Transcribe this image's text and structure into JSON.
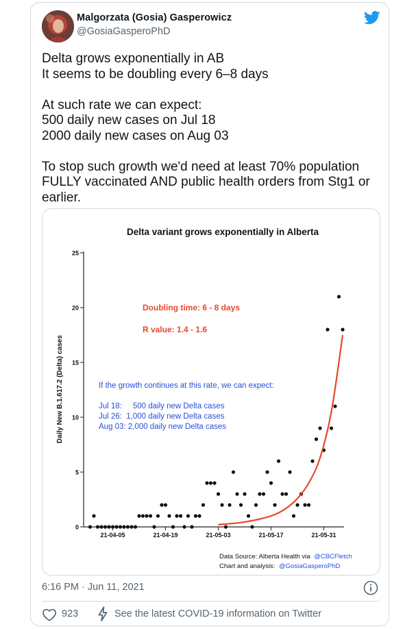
{
  "tweet": {
    "author_name": "Malgorzata (Gosia) Gasperowicz",
    "author_handle": "@GosiaGasperoPhD",
    "paragraphs": [
      "Delta grows exponentially in AB\nIt seems to be doubling every 6–8 days",
      "At such rate we can expect:\n500 daily new cases on Jul 18\n2000 daily new cases on Aug 03",
      "To stop such growth we'd need at least 70% population FULLY vaccinated AND public health orders from Stg1 or earlier."
    ],
    "timestamp": "6:16 PM · Jun 11, 2021",
    "like_count": "923",
    "covid_link": "See the latest COVID-19 information on Twitter"
  },
  "icons": {
    "platform": "twitter-bird-icon",
    "info": "info-icon",
    "like": "heart-icon",
    "covid": "lightning-bolt-icon"
  },
  "colors": {
    "twitter_blue": "#1d9bf0",
    "secondary_text": "#536471",
    "border": "#cfd9de",
    "trend_line": "#e8472b",
    "annotation_red": "#e8472b",
    "annotation_blue": "#2a4fd6"
  },
  "chart_data": {
    "type": "scatter",
    "title": "Delta variant grows exponentially in Alberta",
    "ylabel": "Daily New B.1.617.2 (Delta) cases",
    "xlabel": "",
    "x_range": [
      "2021-03-29",
      "2021-06-05"
    ],
    "ylim": [
      0,
      25
    ],
    "yticks": [
      "0",
      "5",
      "10",
      "15",
      "20",
      "25"
    ],
    "xticks": [
      "21-04-05",
      "21-04-19",
      "21-05-03",
      "21-05-17",
      "21-05-31"
    ],
    "grid": false,
    "annotations": {
      "doubling": "Doubling time: 6 - 8 days",
      "r_value": "R value: 1.4 - 1.6",
      "forecast_intro": "If the growth continues at this rate, we can expect:",
      "forecast_lines": [
        "Jul 18:     500 daily new Delta cases",
        "Jul 26:  1,000 daily new Delta cases",
        "Aug 03: 2,000 daily new Delta cases"
      ],
      "source": "Data Source: Alberta Health via",
      "source_handle": "@CBCFletch",
      "analysis": "Chart and analysis:",
      "analysis_handle": "@GosiaGasperoPhD"
    },
    "points": [
      {
        "x": "2021-03-30",
        "y": 0
      },
      {
        "x": "2021-03-31",
        "y": 1
      },
      {
        "x": "2021-04-01",
        "y": 0
      },
      {
        "x": "2021-04-02",
        "y": 0
      },
      {
        "x": "2021-04-03",
        "y": 0
      },
      {
        "x": "2021-04-04",
        "y": 0
      },
      {
        "x": "2021-04-05",
        "y": 0
      },
      {
        "x": "2021-04-06",
        "y": 0
      },
      {
        "x": "2021-04-07",
        "y": 0
      },
      {
        "x": "2021-04-08",
        "y": 0
      },
      {
        "x": "2021-04-09",
        "y": 0
      },
      {
        "x": "2021-04-10",
        "y": 0
      },
      {
        "x": "2021-04-11",
        "y": 0
      },
      {
        "x": "2021-04-12",
        "y": 1
      },
      {
        "x": "2021-04-13",
        "y": 1
      },
      {
        "x": "2021-04-14",
        "y": 1
      },
      {
        "x": "2021-04-15",
        "y": 1
      },
      {
        "x": "2021-04-16",
        "y": 0
      },
      {
        "x": "2021-04-17",
        "y": 1
      },
      {
        "x": "2021-04-18",
        "y": 2
      },
      {
        "x": "2021-04-19",
        "y": 2
      },
      {
        "x": "2021-04-20",
        "y": 1
      },
      {
        "x": "2021-04-21",
        "y": 0
      },
      {
        "x": "2021-04-22",
        "y": 1
      },
      {
        "x": "2021-04-23",
        "y": 1
      },
      {
        "x": "2021-04-24",
        "y": 0
      },
      {
        "x": "2021-04-25",
        "y": 1
      },
      {
        "x": "2021-04-26",
        "y": 0
      },
      {
        "x": "2021-04-27",
        "y": 1
      },
      {
        "x": "2021-04-28",
        "y": 1
      },
      {
        "x": "2021-04-29",
        "y": 2
      },
      {
        "x": "2021-04-30",
        "y": 4
      },
      {
        "x": "2021-05-01",
        "y": 4
      },
      {
        "x": "2021-05-02",
        "y": 4
      },
      {
        "x": "2021-05-03",
        "y": 3
      },
      {
        "x": "2021-05-04",
        "y": 2
      },
      {
        "x": "2021-05-05",
        "y": 0
      },
      {
        "x": "2021-05-06",
        "y": 2
      },
      {
        "x": "2021-05-07",
        "y": 5
      },
      {
        "x": "2021-05-08",
        "y": 3
      },
      {
        "x": "2021-05-09",
        "y": 2
      },
      {
        "x": "2021-05-10",
        "y": 3
      },
      {
        "x": "2021-05-11",
        "y": 1
      },
      {
        "x": "2021-05-12",
        "y": 0
      },
      {
        "x": "2021-05-13",
        "y": 2
      },
      {
        "x": "2021-05-14",
        "y": 3
      },
      {
        "x": "2021-05-15",
        "y": 3
      },
      {
        "x": "2021-05-16",
        "y": 5
      },
      {
        "x": "2021-05-17",
        "y": 4
      },
      {
        "x": "2021-05-18",
        "y": 2
      },
      {
        "x": "2021-05-19",
        "y": 6
      },
      {
        "x": "2021-05-20",
        "y": 3
      },
      {
        "x": "2021-05-21",
        "y": 3
      },
      {
        "x": "2021-05-22",
        "y": 5
      },
      {
        "x": "2021-05-23",
        "y": 1
      },
      {
        "x": "2021-05-24",
        "y": 2
      },
      {
        "x": "2021-05-25",
        "y": 3
      },
      {
        "x": "2021-05-26",
        "y": 2
      },
      {
        "x": "2021-05-27",
        "y": 2
      },
      {
        "x": "2021-05-28",
        "y": 6
      },
      {
        "x": "2021-05-29",
        "y": 8
      },
      {
        "x": "2021-05-30",
        "y": 9
      },
      {
        "x": "2021-05-31",
        "y": 7
      },
      {
        "x": "2021-06-01",
        "y": 18
      },
      {
        "x": "2021-06-02",
        "y": 9
      },
      {
        "x": "2021-06-03",
        "y": 11
      },
      {
        "x": "2021-06-04",
        "y": 21
      },
      {
        "x": "2021-06-05",
        "y": 18
      }
    ],
    "trend": [
      {
        "x": "2021-05-03",
        "y": 0.2
      },
      {
        "x": "2021-05-10",
        "y": 0.45
      },
      {
        "x": "2021-05-17",
        "y": 1.0
      },
      {
        "x": "2021-05-21",
        "y": 1.7
      },
      {
        "x": "2021-05-24",
        "y": 2.6
      },
      {
        "x": "2021-05-27",
        "y": 4.0
      },
      {
        "x": "2021-05-30",
        "y": 6.3
      },
      {
        "x": "2021-06-02",
        "y": 10.5
      },
      {
        "x": "2021-06-05",
        "y": 17.5
      }
    ]
  }
}
